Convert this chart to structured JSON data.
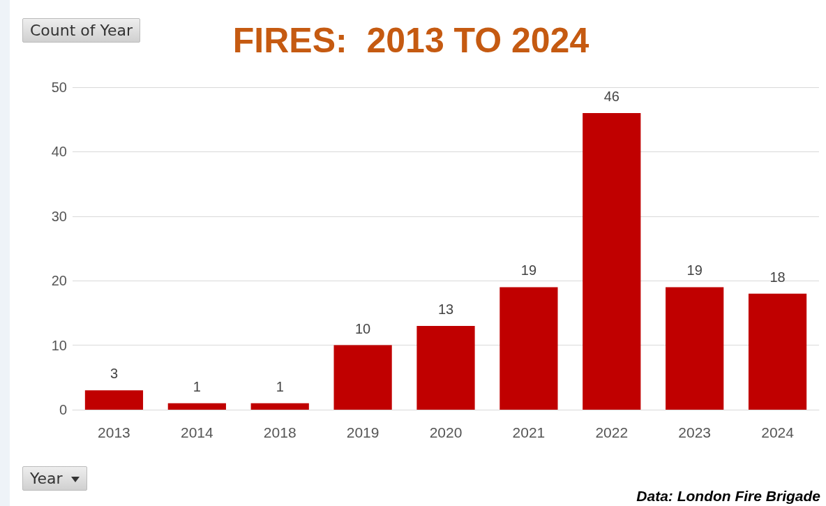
{
  "chart_data": {
    "type": "bar",
    "title": "FIRES:  2013 TO 2024",
    "ylabel": "Count of Year",
    "xlabel": "Year",
    "categories": [
      "2013",
      "2014",
      "2018",
      "2019",
      "2020",
      "2021",
      "2022",
      "2023",
      "2024"
    ],
    "values": [
      3,
      1,
      1,
      10,
      13,
      19,
      46,
      19,
      18
    ],
    "color": "#c00000",
    "ylim": [
      0,
      50
    ],
    "yticks": [
      0,
      10,
      20,
      30,
      40,
      50
    ],
    "grid": "y",
    "data_labels": true,
    "annotations": [
      "Data:  London Fire Brigade"
    ]
  }
}
